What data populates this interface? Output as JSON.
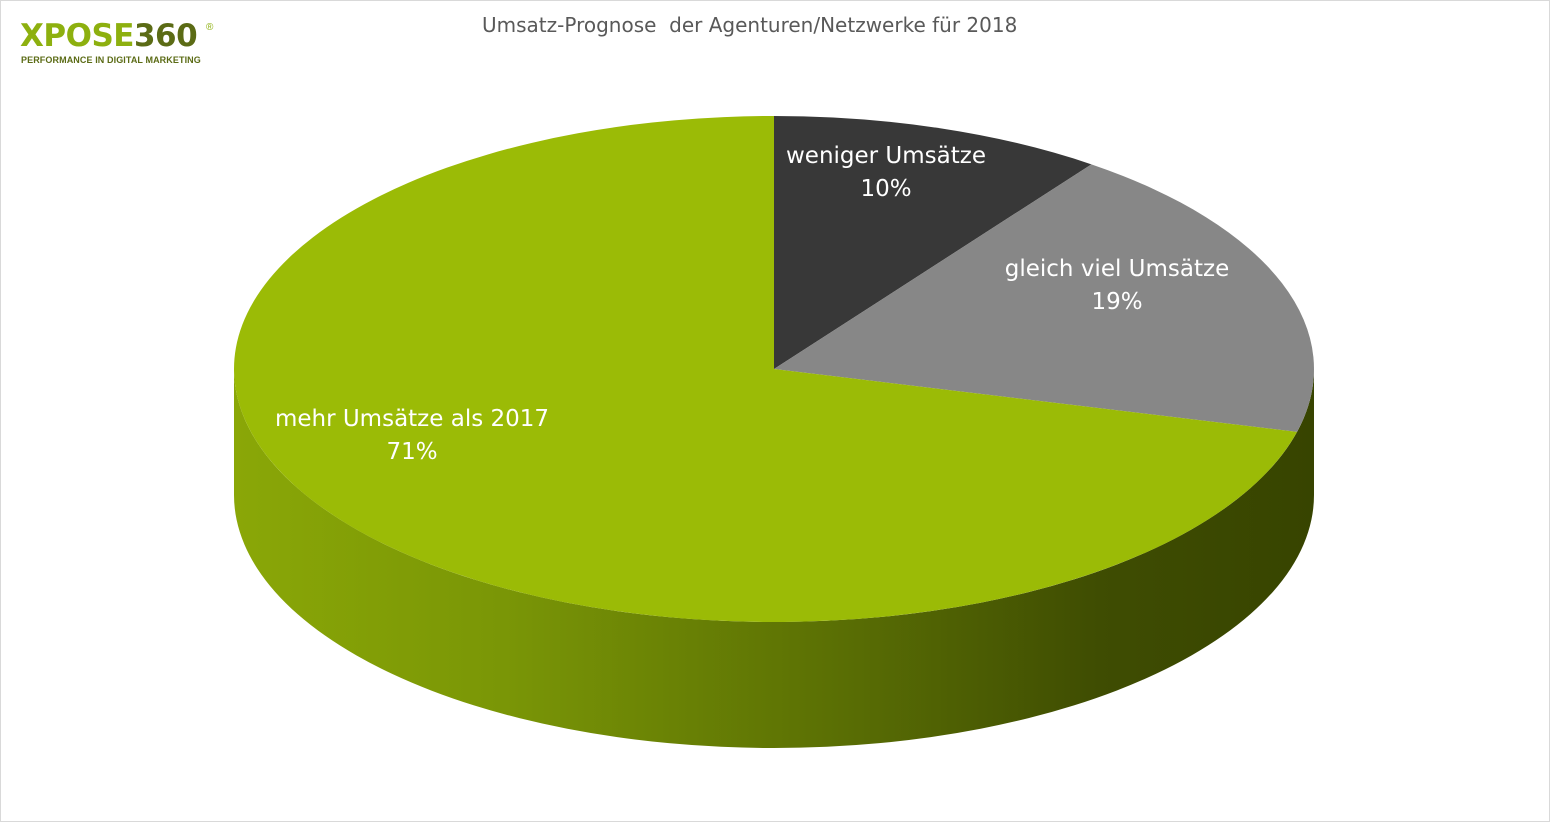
{
  "logo": {
    "brand": "XPOSE",
    "brand_number": "360",
    "registered": "®",
    "tagline": "PERFORMANCE IN DIGITAL MARKETING"
  },
  "chart_data": {
    "type": "pie",
    "title": "Umsatz-Prognose  der Agenturen/Netzwerke für 2018",
    "slices": [
      {
        "label": "weniger Umsätze",
        "value": 10,
        "value_label": "10%",
        "color": "#383838"
      },
      {
        "label": "gleich viel Umsätze",
        "value": 19,
        "value_label": "19%",
        "color": "#878787"
      },
      {
        "label": "mehr Umsätze als 2017",
        "value": 71,
        "value_label": "71%",
        "color": "#9bbb06"
      }
    ],
    "style": "3d",
    "legend": "none"
  }
}
